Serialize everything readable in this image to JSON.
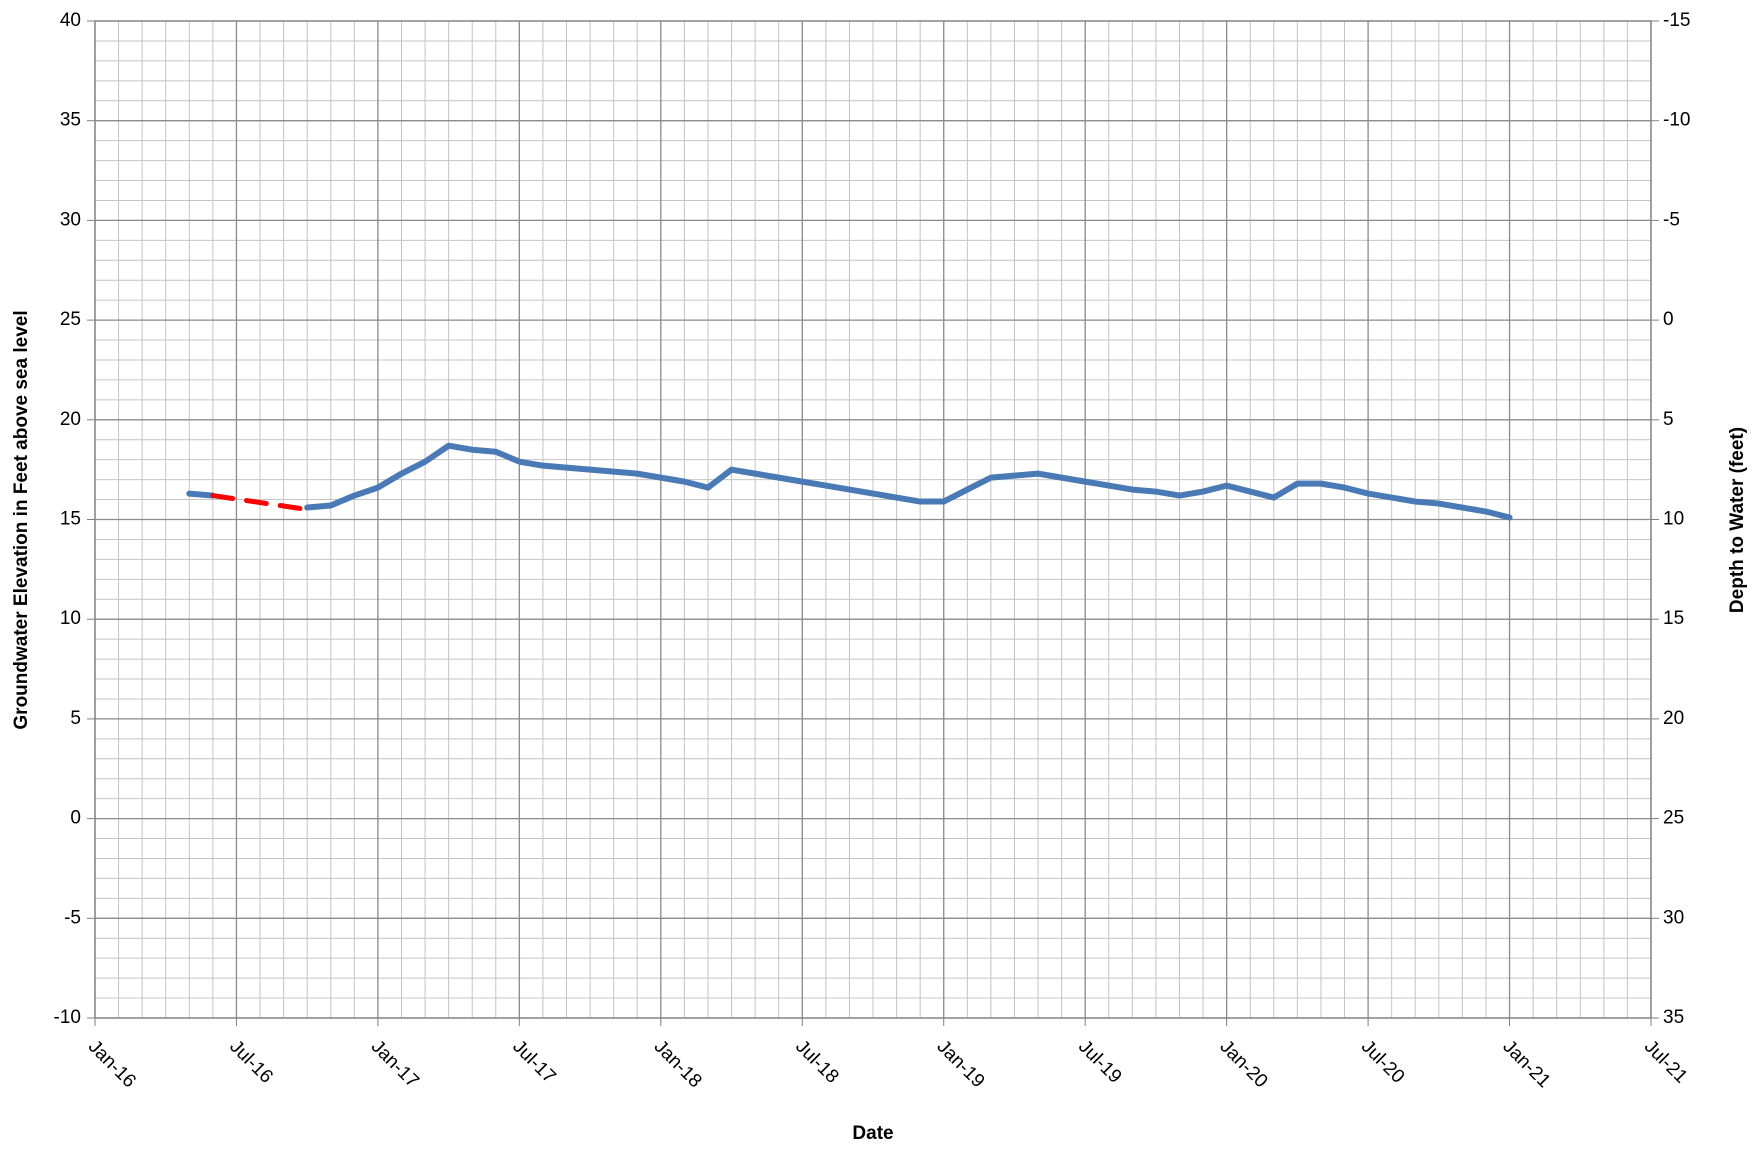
{
  "chart_data": {
    "type": "line",
    "x_label": "Date",
    "y_label": "Groundwater Elevation in Feet above sea level",
    "y2_label": "Depth to Water (feet)",
    "xlim": [
      "2016-01",
      "2021-07"
    ],
    "xticks": [
      {
        "value": "2016-01",
        "label": "Jan-16"
      },
      {
        "value": "2016-07",
        "label": "Jul-16"
      },
      {
        "value": "2017-01",
        "label": "Jan-17"
      },
      {
        "value": "2017-07",
        "label": "Jul-17"
      },
      {
        "value": "2018-01",
        "label": "Jan-18"
      },
      {
        "value": "2018-07",
        "label": "Jul-18"
      },
      {
        "value": "2019-01",
        "label": "Jan-19"
      },
      {
        "value": "2019-07",
        "label": "Jul-19"
      },
      {
        "value": "2020-01",
        "label": "Jan-20"
      },
      {
        "value": "2020-07",
        "label": "Jul-20"
      },
      {
        "value": "2021-01",
        "label": "Jan-21"
      },
      {
        "value": "2021-07",
        "label": "Jul-21"
      }
    ],
    "ylim": [
      -10,
      40
    ],
    "yticks": [
      -10,
      -5,
      0,
      5,
      10,
      15,
      20,
      25,
      30,
      35,
      40
    ],
    "y2lim": [
      35,
      -15
    ],
    "y2ticks": [
      35,
      30,
      25,
      20,
      15,
      10,
      5,
      0,
      -5,
      -10,
      -15
    ],
    "grid": true,
    "minor_grid": true,
    "series": [
      {
        "color": "#4a7ab5",
        "dash": false,
        "x": [
          "2016-05",
          "2016-06",
          null,
          "2016-10",
          "2016-11",
          "2016-12",
          "2017-01",
          "2017-02",
          "2017-03",
          "2017-04",
          "2017-05",
          "2017-06",
          "2017-07",
          "2017-08",
          "2017-09",
          "2017-10",
          "2017-11",
          "2017-12",
          "2018-01",
          "2018-02",
          "2018-03",
          "2018-04",
          "2018-05",
          "2018-06",
          "2018-07",
          "2018-08",
          "2018-09",
          "2018-10",
          "2018-11",
          "2018-12",
          "2019-01",
          "2019-02",
          "2019-03",
          "2019-04",
          "2019-05",
          "2019-06",
          "2019-07",
          "2019-08",
          "2019-09",
          "2019-10",
          "2019-11",
          "2019-12",
          "2020-01",
          "2020-02",
          "2020-03",
          "2020-04",
          "2020-05",
          "2020-06",
          "2020-07",
          "2020-08",
          "2020-09",
          "2020-10",
          "2020-11",
          "2020-12",
          "2021-01"
        ],
        "values": [
          16.3,
          16.2,
          null,
          15.6,
          15.7,
          16.2,
          16.6,
          17.3,
          17.9,
          18.7,
          18.5,
          18.4,
          17.9,
          17.7,
          17.6,
          17.5,
          17.4,
          17.3,
          17.1,
          16.9,
          16.6,
          17.5,
          17.3,
          17.1,
          16.9,
          16.7,
          16.5,
          16.3,
          16.1,
          15.9,
          15.9,
          16.5,
          17.1,
          17.2,
          17.3,
          17.1,
          16.9,
          16.7,
          16.5,
          16.4,
          16.2,
          16.4,
          16.7,
          16.4,
          16.1,
          16.8,
          16.8,
          16.6,
          16.3,
          16.1,
          15.9,
          15.8,
          15.6,
          15.4,
          15.1
        ]
      },
      {
        "color": "#ff0000",
        "dash": true,
        "x": [
          "2016-06",
          "2016-10"
        ],
        "values": [
          16.2,
          15.5
        ]
      }
    ]
  }
}
